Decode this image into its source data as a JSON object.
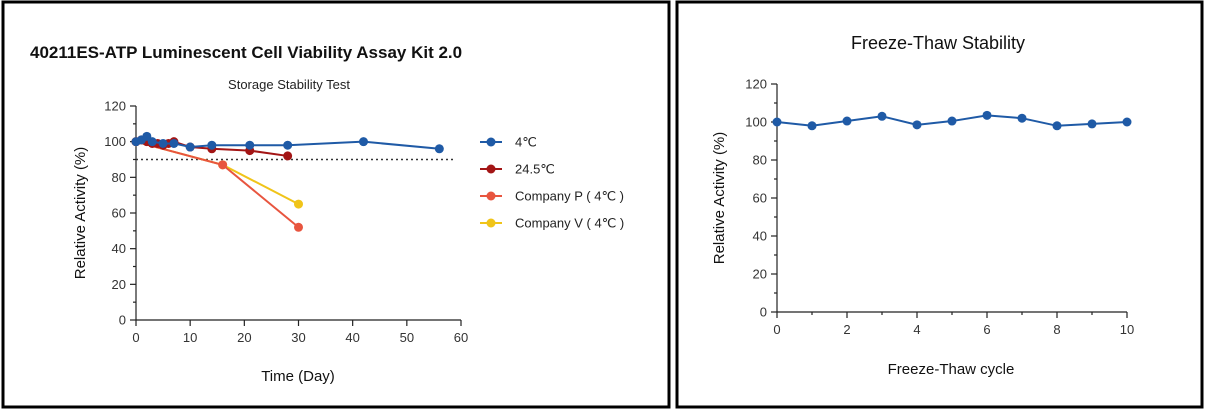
{
  "chart_data": [
    {
      "type": "line",
      "title": "40211ES-ATP Luminescent Cell Viability Assay Kit 2.0",
      "subtitle": "Storage Stability Test",
      "xlabel": "Time (Day)",
      "ylabel": "Relative Activity (%)",
      "xlim": [
        0,
        60
      ],
      "ylim": [
        0,
        120
      ],
      "xticks": [
        "0",
        "10",
        "20",
        "30",
        "40",
        "50",
        "60"
      ],
      "yticks": [
        "0",
        "20",
        "40",
        "60",
        "80",
        "100",
        "120"
      ],
      "reference_line": {
        "y": 90,
        "style": "dotted"
      },
      "legend_position": "right",
      "series": [
        {
          "name": "4℃",
          "color": "#1f5aa6",
          "x": [
            0,
            1,
            2,
            3,
            5,
            7,
            10,
            14,
            21,
            28,
            42,
            56
          ],
          "y": [
            100,
            101,
            103,
            100,
            99,
            99,
            97,
            98,
            98,
            98,
            100,
            96
          ]
        },
        {
          "name": "24.5℃",
          "color": "#a31515",
          "x": [
            0,
            1,
            2,
            3,
            4,
            5,
            6,
            7,
            10,
            14,
            21,
            28
          ],
          "y": [
            100,
            101,
            100,
            99,
            99,
            98,
            99,
            100,
            97,
            96,
            95,
            92
          ]
        },
        {
          "name": "Company P ( 4℃ )",
          "color": "#e8553f",
          "x": [
            0,
            16,
            30
          ],
          "y": [
            100,
            87,
            52
          ]
        },
        {
          "name": "Company V ( 4℃ )",
          "color": "#f0c419",
          "x": [
            0,
            16,
            30
          ],
          "y": [
            100,
            87,
            65
          ]
        }
      ]
    },
    {
      "type": "line",
      "title": "Freeze-Thaw Stability",
      "xlabel": "Freeze-Thaw cycle",
      "ylabel": "Relative Activity (%)",
      "xlim": [
        0,
        10
      ],
      "ylim": [
        0,
        120
      ],
      "xticks": [
        "0",
        "2",
        "4",
        "6",
        "8",
        "10"
      ],
      "yticks": [
        "0",
        "20",
        "40",
        "60",
        "80",
        "100",
        "120"
      ],
      "series": [
        {
          "name": "",
          "color": "#1f5aa6",
          "x": [
            0,
            1,
            2,
            3,
            4,
            5,
            6,
            7,
            8,
            9,
            10
          ],
          "y": [
            100,
            98,
            100.5,
            103,
            98.5,
            100.5,
            103.5,
            102,
            98,
            99,
            100
          ]
        }
      ]
    }
  ]
}
